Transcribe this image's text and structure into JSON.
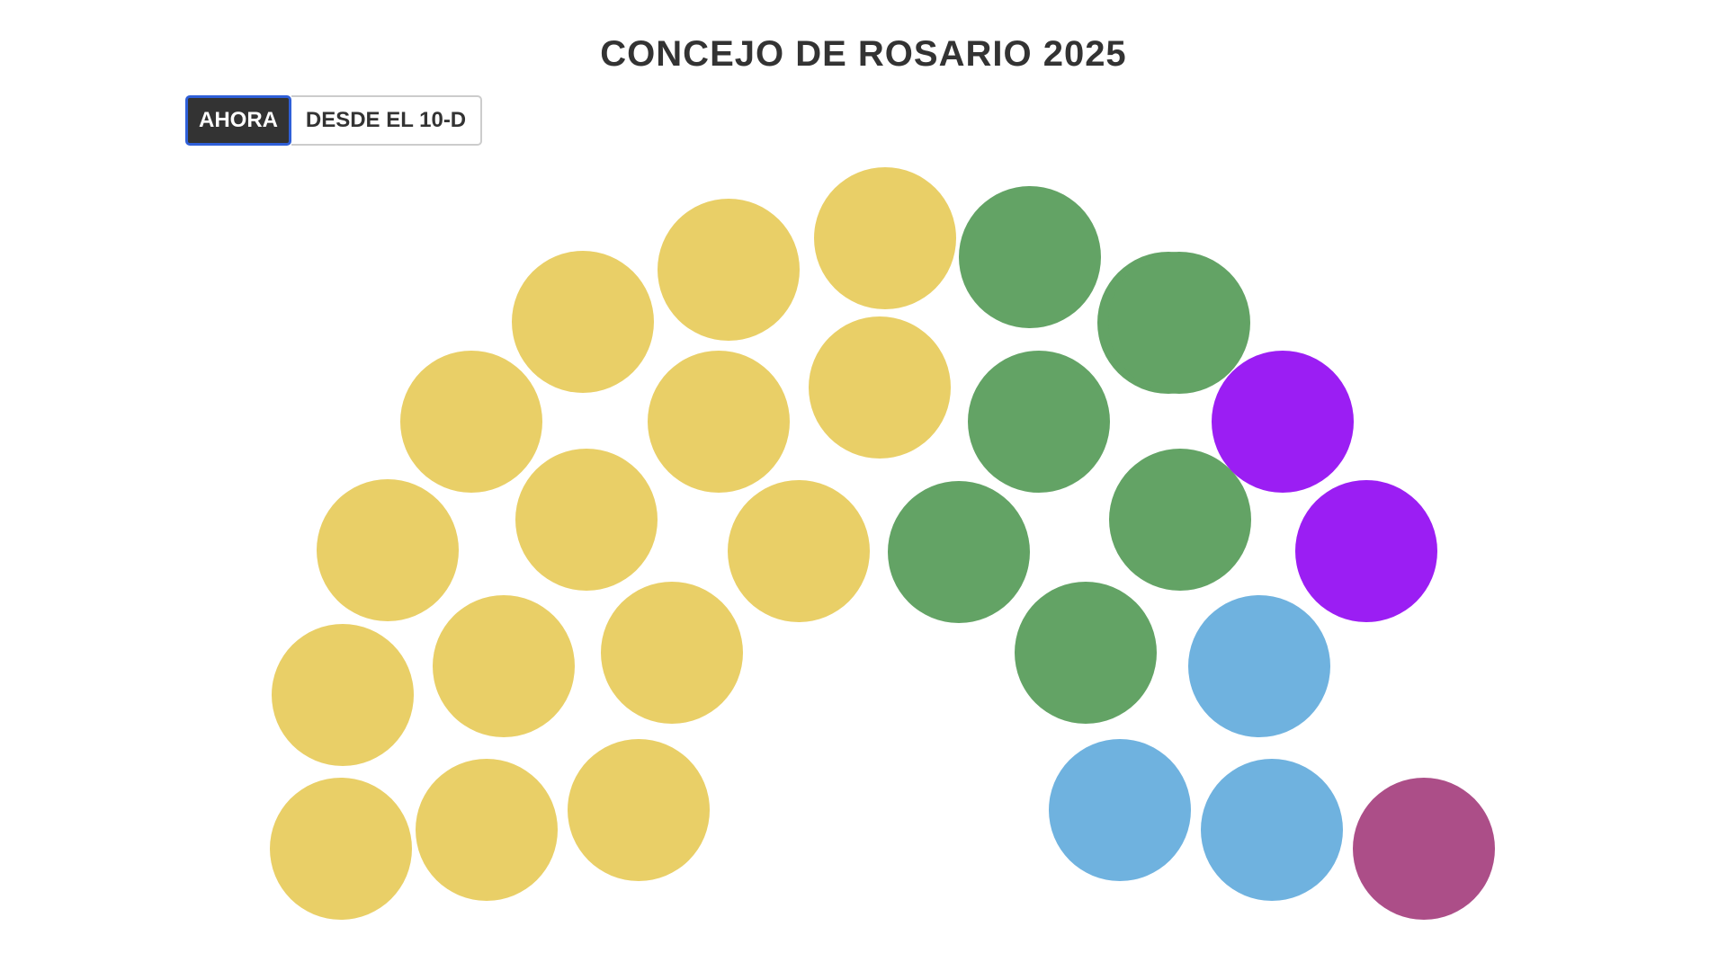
{
  "title": "CONCEJO DE ROSARIO 2025",
  "toggle": {
    "options": [
      "AHORA",
      "DESDE EL 10-D"
    ],
    "active_index": 0
  },
  "chart_data": {
    "type": "parliament",
    "title": "CONCEJO DE ROSARIO 2025",
    "total_seats": 28,
    "groups": [
      {
        "color": "#E9CF67",
        "seats": 15
      },
      {
        "color": "#63A365",
        "seats": 7
      },
      {
        "color": "#9B1EF3",
        "seats": 2
      },
      {
        "color": "#6FB2DF",
        "seats": 3
      },
      {
        "color": "#AC4E88",
        "seats": 1
      }
    ]
  }
}
